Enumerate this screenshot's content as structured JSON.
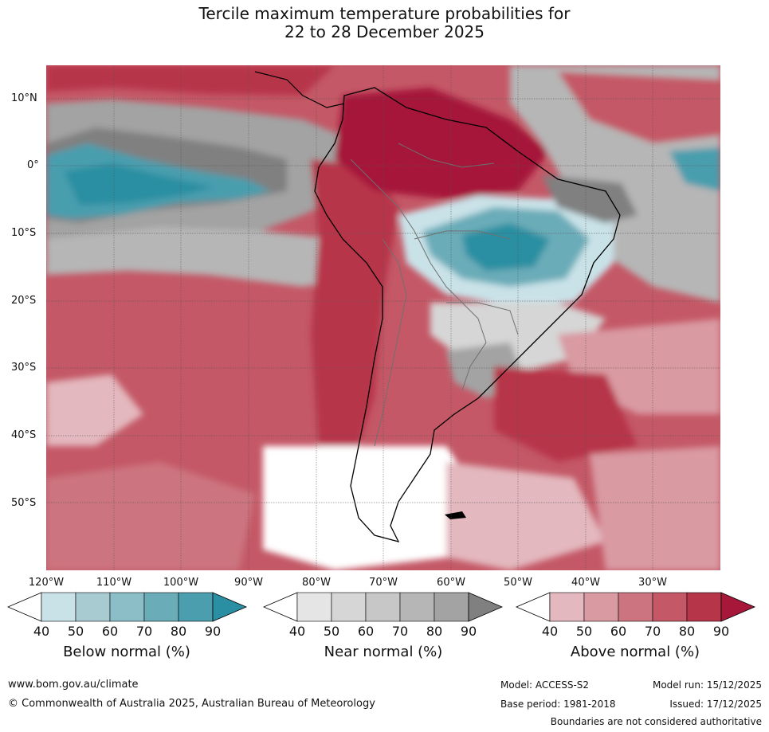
{
  "title": {
    "line1": "Tercile maximum temperature probabilities for",
    "line2": "22 to 28 December 2025"
  },
  "latitude_labels": [
    "10°N",
    "0°",
    "10°S",
    "20°S",
    "30°S",
    "40°S",
    "50°S"
  ],
  "longitude_labels": [
    "120°W",
    "110°W",
    "100°W",
    "90°W",
    "80°W",
    "70°W",
    "60°W",
    "50°W",
    "40°W",
    "30°W"
  ],
  "legends": [
    {
      "title": "Below normal (%)",
      "ticks": [
        "40",
        "50",
        "60",
        "70",
        "80",
        "90"
      ],
      "colors": [
        "#ffffff",
        "#c9e2e8",
        "#a8cbd2",
        "#8bbec7",
        "#6aacb8",
        "#4a9eae",
        "#2a8fa2"
      ]
    },
    {
      "title": "Near normal (%)",
      "ticks": [
        "40",
        "50",
        "60",
        "70",
        "80",
        "90"
      ],
      "colors": [
        "#ffffff",
        "#e5e5e5",
        "#d6d6d6",
        "#c7c7c7",
        "#b6b6b6",
        "#a3a3a3",
        "#808080"
      ]
    },
    {
      "title": "Above normal (%)",
      "ticks": [
        "40",
        "50",
        "60",
        "70",
        "80",
        "90"
      ],
      "colors": [
        "#ffffff",
        "#e3b8be",
        "#d99aa2",
        "#cc7580",
        "#c45866",
        "#b73549",
        "#a6173a"
      ]
    }
  ],
  "footer": {
    "website": "www.bom.gov.au/climate",
    "copyright": "© Commonwealth of Australia 2025, Australian Bureau of Meteorology",
    "model": "Model: ACCESS-S2",
    "base_period": "Base period: 1981-2018",
    "model_run": "Model run: 15/12/2025",
    "issued": "Issued: 17/12/2025",
    "disclaimer": "Boundaries are not considered authoritative"
  }
}
